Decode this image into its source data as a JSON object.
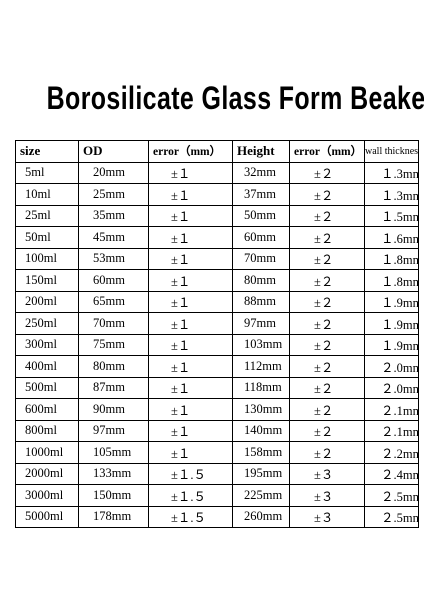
{
  "title": "Borosilicate Glass Form Beaker",
  "table": {
    "headers": [
      "size",
      "OD",
      "error（mm）",
      "Height",
      "error（mm）",
      "wall thickness"
    ],
    "rows": [
      [
        "5ml",
        "20mm",
        "±１",
        "32mm",
        "±２",
        "１.3mm"
      ],
      [
        "10ml",
        "25mm",
        "±１",
        "37mm",
        "±２",
        "１.3mm"
      ],
      [
        "25ml",
        "35mm",
        "±１",
        "50mm",
        "±２",
        "１.5mm"
      ],
      [
        "50ml",
        "45mm",
        "±１",
        "60mm",
        "±２",
        "１.6mm"
      ],
      [
        "100ml",
        "53mm",
        "±１",
        "70mm",
        "±２",
        "１.8mm"
      ],
      [
        "150ml",
        "60mm",
        "±１",
        "80mm",
        "±２",
        "１.8mm"
      ],
      [
        "200ml",
        "65mm",
        "±１",
        "88mm",
        "±２",
        "１.9mm"
      ],
      [
        "250ml",
        "70mm",
        "±１",
        "97mm",
        "±２",
        "１.9mm"
      ],
      [
        "300ml",
        "75mm",
        "±１",
        "103mm",
        "±２",
        "１.9mm"
      ],
      [
        "400ml",
        "80mm",
        "±１",
        "112mm",
        "±２",
        "２.0mm"
      ],
      [
        "500ml",
        "87mm",
        "±１",
        "118mm",
        "±２",
        "２.0mm"
      ],
      [
        "600ml",
        "90mm",
        "±１",
        "130mm",
        "±２",
        "２.1mm"
      ],
      [
        "800ml",
        "97mm",
        "±１",
        "140mm",
        "±２",
        "２.1mm"
      ],
      [
        "1000ml",
        "105mm",
        "±１",
        "158mm",
        "±２",
        "２.2mm"
      ],
      [
        "2000ml",
        "133mm",
        "±１.５",
        "195mm",
        "±３",
        "２.4mm"
      ],
      [
        "3000ml",
        "150mm",
        "±１.５",
        "225mm",
        "±３",
        "２.5mm"
      ],
      [
        "5000ml",
        "178mm",
        "±１.５",
        "260mm",
        "±３",
        "２.5mm"
      ]
    ]
  }
}
